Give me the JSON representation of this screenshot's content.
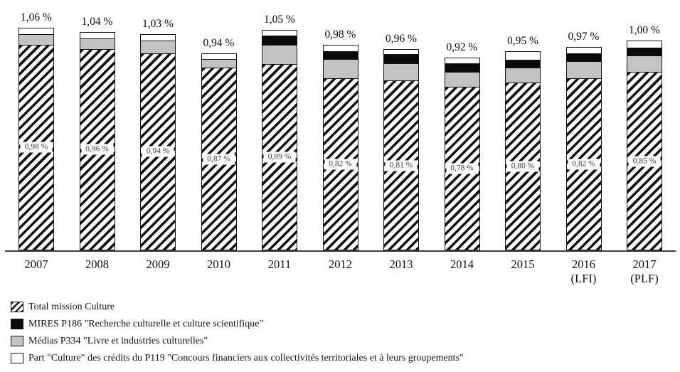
{
  "chart_data": {
    "type": "bar",
    "stacked": true,
    "unit": "%",
    "title": "",
    "xlabel": "",
    "ylabel": "",
    "ylim": [
      0,
      1.1
    ],
    "grid": false,
    "legend_position": "bottom-left",
    "categories": [
      "2007",
      "2008",
      "2009",
      "2010",
      "2011",
      "2012",
      "2013",
      "2014",
      "2015",
      "2016",
      "2017"
    ],
    "category_sublabels": [
      "",
      "",
      "",
      "",
      "",
      "",
      "",
      "",
      "",
      "(LFI)",
      "(PLF)"
    ],
    "totals": [
      1.06,
      1.04,
      1.03,
      0.94,
      1.05,
      0.98,
      0.96,
      0.92,
      0.95,
      0.97,
      1.0
    ],
    "total_labels": [
      "1,06 %",
      "1,04 %",
      "1,03 %",
      "0,94 %",
      "1,05 %",
      "0,98 %",
      "0,96 %",
      "0,92 %",
      "0,95 %",
      "0,97 %",
      "1,00 %"
    ],
    "series": [
      {
        "name": "Total mission Culture",
        "style": "hatched",
        "values": [
          0.98,
          0.96,
          0.94,
          0.87,
          0.89,
          0.82,
          0.81,
          0.78,
          0.8,
          0.82,
          0.85
        ],
        "value_labels": [
          "0,98 %",
          "0,96 %",
          "0,94 %",
          "0,87 %",
          "0,89 %",
          "0,82 %",
          "0,81 %",
          "0,78 %",
          "0,80 %",
          "0,82 %",
          "0,85 %"
        ]
      },
      {
        "name": "Médias P334 \"Livre et industries culturelles\"",
        "style": "gray",
        "color": "#c3c3c3",
        "values": [
          0.05,
          0.05,
          0.06,
          0.04,
          0.09,
          0.09,
          0.08,
          0.07,
          0.07,
          0.08,
          0.08
        ]
      },
      {
        "name": "MIRES P186 \"Recherche culturelle et culture scientifique\"",
        "style": "black",
        "color": "#0a0a0a",
        "values": [
          0,
          0,
          0,
          0,
          0.045,
          0.04,
          0.045,
          0.04,
          0.04,
          0.04,
          0.035
        ]
      },
      {
        "name": "Part \"Culture\" des crédits du P119 \"Concours financiers aux collectivités territoriales et à leurs groupements\"",
        "style": "white",
        "color": "#ffffff",
        "values": [
          0.03,
          0.03,
          0.03,
          0.03,
          0.025,
          0.03,
          0.025,
          0.03,
          0.04,
          0.03,
          0.035
        ]
      }
    ]
  },
  "legend": {
    "items": [
      {
        "label": "Total mission Culture",
        "swatch": "hatched"
      },
      {
        "label": "MIRES P186 \"Recherche culturelle et culture scientifique\"",
        "swatch": "black"
      },
      {
        "label": "Médias P334 \"Livre et industries culturelles\"",
        "swatch": "gray"
      },
      {
        "label": "Part \"Culture\" des crédits du P119 \"Concours financiers aux collectivités territoriales et à leurs groupements\"",
        "swatch": "white"
      }
    ]
  },
  "colors": {
    "gray_segment": "#c3c3c3",
    "black_segment": "#0a0a0a",
    "white_segment": "#ffffff",
    "hatch": "#141414",
    "axis": "#3f3f3f",
    "inner_label_text": "#3c3c3c"
  }
}
